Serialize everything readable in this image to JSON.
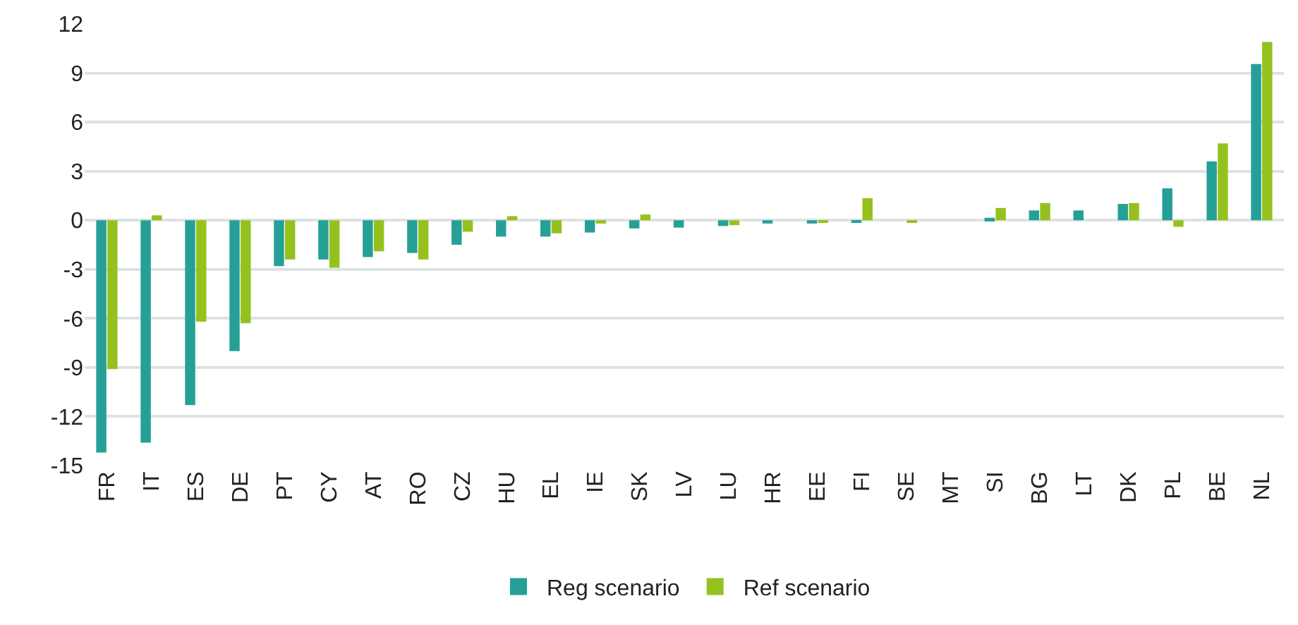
{
  "chart_data": {
    "type": "bar",
    "categories": [
      "FR",
      "IT",
      "ES",
      "DE",
      "PT",
      "CY",
      "AT",
      "RO",
      "CZ",
      "HU",
      "EL",
      "IE",
      "SK",
      "LV",
      "LU",
      "HR",
      "EE",
      "FI",
      "SE",
      "MT",
      "SI",
      "BG",
      "LT",
      "DK",
      "PL",
      "BE",
      "NL"
    ],
    "series": [
      {
        "name": "Reg scenario",
        "color": "#26a096",
        "values": [
          -14.2,
          -13.6,
          -11.3,
          -8.0,
          -2.8,
          -2.4,
          -2.25,
          -2.0,
          -1.5,
          -1.0,
          -1.0,
          -0.75,
          -0.5,
          -0.45,
          -0.35,
          -0.2,
          -0.2,
          -0.1,
          null,
          null,
          0.15,
          0.6,
          0.6,
          1.0,
          1.95,
          3.6,
          9.55
        ]
      },
      {
        "name": "Ref scenario",
        "color": "#95c11f",
        "values": [
          -9.1,
          0.3,
          -6.2,
          -6.3,
          -2.4,
          -2.9,
          -1.9,
          -2.4,
          -0.7,
          0.25,
          -0.8,
          -0.2,
          0.35,
          null,
          -0.3,
          null,
          -0.1,
          1.35,
          -0.15,
          null,
          0.75,
          1.05,
          null,
          1.05,
          -0.4,
          4.7,
          10.9
        ]
      }
    ],
    "ylim": [
      -15,
      12
    ],
    "yticks": [
      -15,
      -12,
      -9,
      -6,
      -3,
      0,
      3,
      6,
      9,
      12
    ],
    "grid": "y",
    "legend": "bottom"
  }
}
